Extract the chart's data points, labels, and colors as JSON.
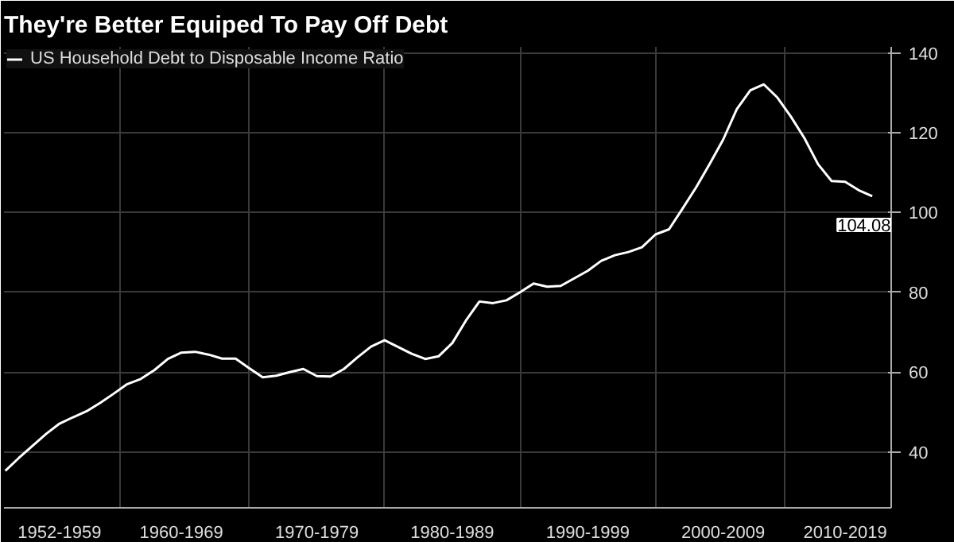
{
  "chart_data": {
    "type": "line",
    "title": "They're Better Equiped To Pay Off Debt",
    "categories": [
      null,
      null,
      null,
      null,
      "1952-1959",
      null,
      null,
      null,
      null,
      null,
      null,
      null,
      null,
      "1960-1969",
      null,
      null,
      null,
      null,
      null,
      null,
      null,
      null,
      null,
      "1970-1979",
      null,
      null,
      null,
      null,
      null,
      null,
      null,
      null,
      null,
      "1980-1989",
      null,
      null,
      null,
      null,
      null,
      null,
      null,
      null,
      null,
      "1990-1999",
      null,
      null,
      null,
      null,
      null,
      null,
      null,
      null,
      null,
      "2000-2009",
      null,
      null,
      null,
      null,
      null,
      null,
      null,
      null,
      "2010-2019",
      null,
      null
    ],
    "series": [
      {
        "name": "US Household Debt to Disposable Income Ratio",
        "color": "#ffffff",
        "values": [
          35.3,
          38.5,
          41.5,
          44.5,
          47.1,
          48.7,
          50.2,
          52.3,
          54.6,
          57.0,
          58.3,
          60.5,
          63.3,
          64.9,
          65.1,
          64.4,
          63.4,
          63.4,
          61.0,
          58.7,
          59.1,
          60.0,
          60.8,
          59.0,
          58.9,
          60.8,
          63.7,
          66.4,
          68.0,
          66.3,
          64.6,
          63.3,
          64.0,
          67.3,
          72.9,
          77.7,
          77.3,
          78.0,
          80.0,
          82.2,
          81.4,
          81.6,
          83.5,
          85.4,
          87.9,
          89.3,
          90.1,
          91.3,
          94.5,
          95.8,
          101.0,
          106.3,
          112.2,
          118.3,
          125.9,
          130.6,
          132.1,
          128.8,
          124.0,
          118.6,
          112.1,
          107.9,
          107.7,
          105.6,
          104.08
        ],
        "value_labels": [
          null,
          null,
          null,
          null,
          null,
          null,
          null,
          null,
          null,
          null,
          null,
          null,
          null,
          null,
          null,
          null,
          null,
          null,
          null,
          null,
          null,
          null,
          null,
          null,
          null,
          null,
          null,
          null,
          null,
          null,
          null,
          null,
          null,
          null,
          null,
          null,
          null,
          null,
          null,
          null,
          null,
          null,
          null,
          null,
          null,
          null,
          null,
          null,
          null,
          null,
          null,
          null,
          null,
          null,
          null,
          null,
          null,
          null,
          null,
          null,
          null,
          null,
          null,
          null,
          "104.08"
        ]
      }
    ],
    "ylim": [
      26,
      141.5
    ],
    "yticks": [
      40,
      60,
      80,
      100,
      120,
      140
    ],
    "grid": true,
    "legend": "top left",
    "line_style": "solid",
    "marker": "none"
  }
}
